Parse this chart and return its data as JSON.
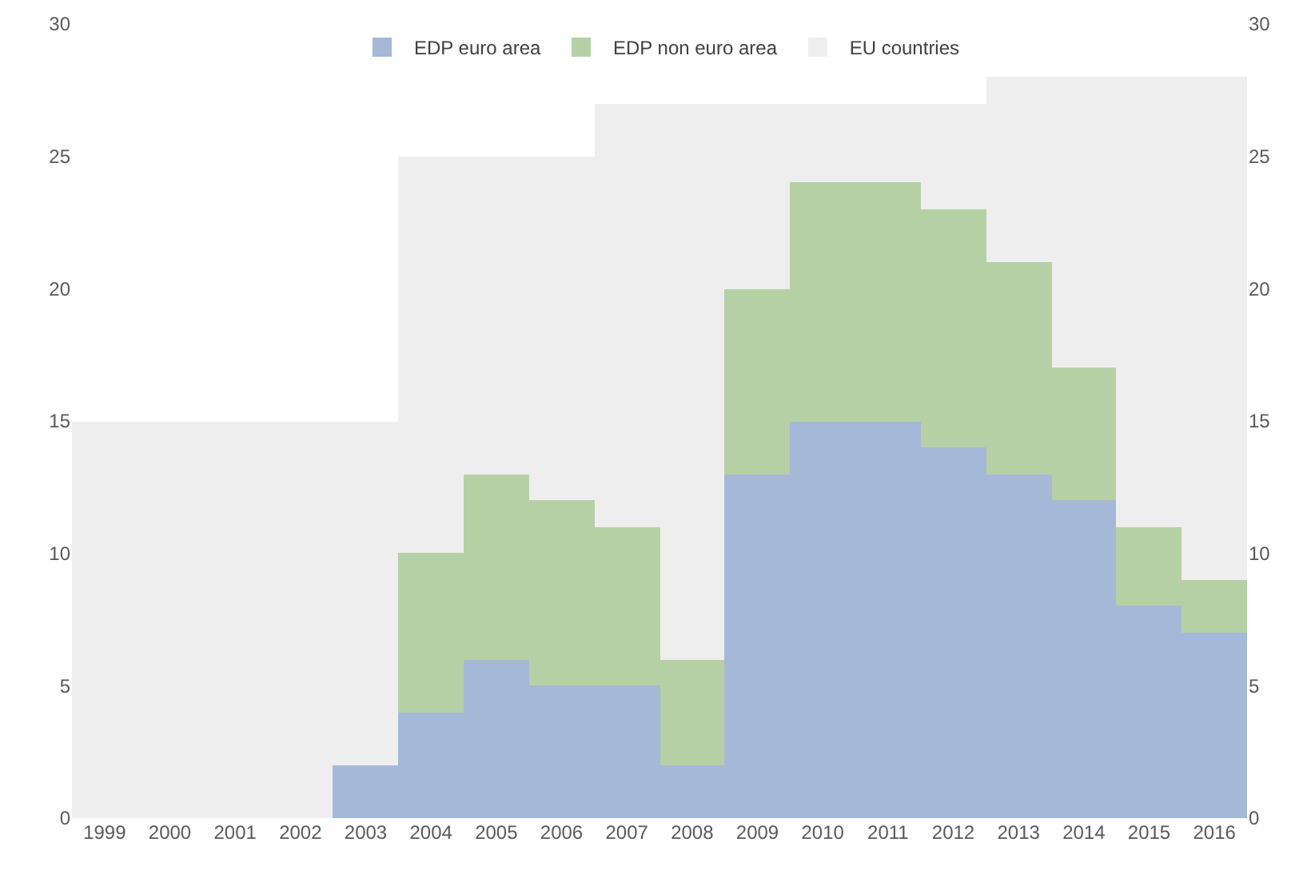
{
  "chart_data": {
    "type": "bar",
    "stacked": true,
    "categories": [
      "1999",
      "2000",
      "2001",
      "2002",
      "2003",
      "2004",
      "2005",
      "2006",
      "2007",
      "2008",
      "2009",
      "2010",
      "2011",
      "2012",
      "2013",
      "2014",
      "2015",
      "2016"
    ],
    "series": [
      {
        "name": "EDP euro area",
        "color": "#a5b8d8",
        "values": [
          0,
          0,
          0,
          0,
          2,
          4,
          6,
          5,
          5,
          2,
          13,
          15,
          15,
          14,
          13,
          12,
          8,
          7
        ]
      },
      {
        "name": "EDP non euro area",
        "color": "#b6d0a5",
        "values": [
          0,
          0,
          0,
          0,
          0,
          6,
          7,
          7,
          6,
          4,
          7,
          9,
          9,
          9,
          8,
          5,
          3,
          2
        ]
      },
      {
        "name": "EU countries",
        "color": "#eeeeee",
        "values": [
          15,
          15,
          15,
          15,
          13,
          15,
          12,
          13,
          16,
          21,
          7,
          3,
          3,
          4,
          7,
          11,
          17,
          19
        ]
      }
    ],
    "ylim": [
      0,
      30
    ],
    "yticks": [
      0,
      5,
      10,
      15,
      20,
      25,
      30
    ],
    "y2lim": [
      0,
      30
    ],
    "y2ticks": [
      0,
      5,
      10,
      15,
      20,
      25,
      30
    ],
    "grid": false,
    "legend": "top"
  }
}
